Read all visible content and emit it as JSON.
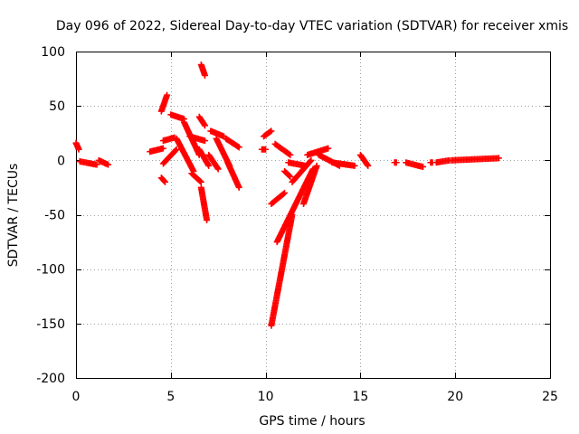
{
  "chart_data": {
    "type": "scatter",
    "title": "Day 096 of 2022, Sidereal Day-to-day VTEC variation (SDTVAR) for receiver xmis",
    "xlabel": "GPS time / hours",
    "ylabel": "SDTVAR / TECUs",
    "xlim": [
      0,
      25
    ],
    "ylim": [
      -200,
      100
    ],
    "x_ticks": [
      0,
      5,
      10,
      15,
      20,
      25
    ],
    "y_ticks": [
      -200,
      -150,
      -100,
      -50,
      0,
      50,
      100
    ],
    "x_tick_labels": [
      "0",
      "5",
      "10",
      "15",
      "20",
      "25"
    ],
    "y_tick_labels": [
      "-200",
      "-150",
      "-100",
      "-50",
      "0",
      "50",
      "100"
    ],
    "grid": true,
    "marker": "+",
    "series": [
      {
        "name": "SDTVAR",
        "color": "#ff0000",
        "segments": [
          {
            "x": [
              0.0,
              0.15
            ],
            "y": [
              16,
              10
            ]
          },
          {
            "x": [
              0.2,
              1.1
            ],
            "y": [
              -1,
              -4
            ]
          },
          {
            "x": [
              1.2,
              1.7
            ],
            "y": [
              0,
              -4
            ]
          },
          {
            "x": [
              3.9,
              4.6
            ],
            "y": [
              8,
              11
            ]
          },
          {
            "x": [
              4.6,
              5.3
            ],
            "y": [
              -3,
              10
            ]
          },
          {
            "x": [
              4.5,
              4.8
            ],
            "y": [
              45,
              60
            ]
          },
          {
            "x": [
              4.6,
              5.2
            ],
            "y": [
              18,
              21
            ]
          },
          {
            "x": [
              4.5,
              4.7
            ],
            "y": [
              -16,
              -20
            ]
          },
          {
            "x": [
              5.0,
              5.7
            ],
            "y": [
              42,
              38
            ]
          },
          {
            "x": [
              5.3,
              6.2
            ],
            "y": [
              20,
              -10
            ]
          },
          {
            "x": [
              5.7,
              6.5
            ],
            "y": [
              35,
              5
            ]
          },
          {
            "x": [
              6.0,
              6.8
            ],
            "y": [
              22,
              18
            ]
          },
          {
            "x": [
              6.1,
              6.6
            ],
            "y": [
              -12,
              -20
            ]
          },
          {
            "x": [
              6.5,
              7.0
            ],
            "y": [
              10,
              -5
            ]
          },
          {
            "x": [
              6.6,
              6.8
            ],
            "y": [
              88,
              78
            ]
          },
          {
            "x": [
              6.6,
              6.9
            ],
            "y": [
              -25,
              -55
            ]
          },
          {
            "x": [
              6.5,
              6.8
            ],
            "y": [
              40,
              32
            ]
          },
          {
            "x": [
              7.0,
              7.5
            ],
            "y": [
              5,
              -8
            ]
          },
          {
            "x": [
              7.1,
              7.8
            ],
            "y": [
              27,
              22
            ]
          },
          {
            "x": [
              7.4,
              8.1
            ],
            "y": [
              20,
              -5
            ]
          },
          {
            "x": [
              7.9,
              8.6
            ],
            "y": [
              20,
              12
            ]
          },
          {
            "x": [
              8.0,
              8.6
            ],
            "y": [
              -2,
              -25
            ]
          },
          {
            "x": [
              9.9,
              10.3
            ],
            "y": [
              22,
              27
            ]
          },
          {
            "x": [
              9.8,
              10.0
            ],
            "y": [
              10,
              10
            ]
          },
          {
            "x": [
              10.3,
              11.0
            ],
            "y": [
              -40,
              -30
            ]
          },
          {
            "x": [
              10.3,
              11.4
            ],
            "y": [
              -152,
              -50
            ]
          },
          {
            "x": [
              10.5,
              11.3
            ],
            "y": [
              15,
              5
            ]
          },
          {
            "x": [
              10.6,
              12.5
            ],
            "y": [
              -75,
              -8
            ]
          },
          {
            "x": [
              11.0,
              11.3
            ],
            "y": [
              -10,
              -15
            ]
          },
          {
            "x": [
              11.2,
              12.1
            ],
            "y": [
              -2,
              -5
            ]
          },
          {
            "x": [
              11.4,
              12.4
            ],
            "y": [
              -20,
              0
            ]
          },
          {
            "x": [
              12.0,
              12.7
            ],
            "y": [
              -40,
              -5
            ]
          },
          {
            "x": [
              12.2,
              13.3
            ],
            "y": [
              5,
              11
            ]
          },
          {
            "x": [
              12.8,
              13.9
            ],
            "y": [
              5,
              -5
            ]
          },
          {
            "x": [
              13.5,
              14.7
            ],
            "y": [
              -2,
              -5
            ]
          },
          {
            "x": [
              15.0,
              15.4
            ],
            "y": [
              5,
              -5
            ]
          },
          {
            "x": [
              16.8,
              16.9
            ],
            "y": [
              -2,
              -2
            ]
          },
          {
            "x": [
              17.4,
              18.3
            ],
            "y": [
              -2,
              -6
            ]
          },
          {
            "x": [
              18.7,
              18.8
            ],
            "y": [
              -2,
              -2
            ]
          },
          {
            "x": [
              19.0,
              19.7
            ],
            "y": [
              -2,
              0
            ]
          },
          {
            "x": [
              19.8,
              22.3
            ],
            "y": [
              0,
              2
            ]
          }
        ]
      }
    ]
  }
}
